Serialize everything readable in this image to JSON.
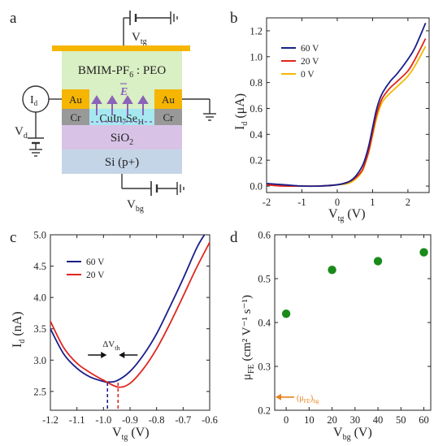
{
  "panels": {
    "a": "a",
    "b": "b",
    "c": "c",
    "d": "d"
  },
  "schematic": {
    "electrolyte": "BMIM-PF",
    "electrolyte_sub": "6",
    "electrolyte_suffix": " : PEO",
    "field": "E",
    "channel_pre": "CuIn",
    "channel_sub1": "7",
    "channel_mid": "Se",
    "channel_sub2": "11",
    "oxide_pre": "SiO",
    "oxide_sub": "2",
    "substrate": "Si (p+)",
    "au_left": "Au",
    "au_right": "Au",
    "cr_left": "Cr",
    "cr_right": "Cr",
    "meter": "I",
    "meter_sub": "d",
    "vd": "V",
    "vd_sub": "d",
    "vtg": "V",
    "vtg_sub": "tg",
    "vbg": "V",
    "vbg_sub": "bg"
  },
  "colors": {
    "v60": "#1a1f8a",
    "v20": "#e0261e",
    "v0": "#f5b800",
    "mu": "#1a8a1a",
    "ref": "#e8801e",
    "electrolyte": "#d9efc4",
    "channel": "#a6e8f0",
    "oxide": "#d8c2e6",
    "substrate": "#c5d5e8",
    "gold": "#f6b500",
    "cr": "#999999",
    "arrow": "#8b63b8"
  },
  "chart_data": [
    {
      "panel": "b",
      "type": "line",
      "xlabel": "V",
      "xlabel_sub": "tg",
      "xlabel_unit": " (V)",
      "ylabel": "I",
      "ylabel_sub": "d",
      "ylabel_unit": " (μA)",
      "xlim": [
        -2,
        2.6
      ],
      "ylim": [
        -0.05,
        1.3
      ],
      "xticks": [
        -2,
        -1,
        0,
        1,
        2
      ],
      "yticks": [
        0.0,
        0.2,
        0.4,
        0.6,
        0.8,
        1.0,
        1.2
      ],
      "ytick_labels": [
        "0.0",
        "0.2",
        "0.4",
        "0.6",
        "0.8",
        "1.0",
        "1.2"
      ],
      "legend": "top-left",
      "series": [
        {
          "name": "60 V",
          "x": [
            -2,
            -1.5,
            -1,
            -0.5,
            0,
            0.3,
            0.5,
            0.7,
            0.8,
            0.9,
            1.0,
            1.1,
            1.2,
            1.3,
            1.5,
            1.7,
            2.0,
            2.2,
            2.5
          ],
          "y": [
            0.02,
            0.01,
            0.0,
            0.0,
            0.01,
            0.03,
            0.07,
            0.15,
            0.22,
            0.32,
            0.45,
            0.58,
            0.67,
            0.73,
            0.81,
            0.87,
            0.98,
            1.07,
            1.26
          ]
        },
        {
          "name": "20 V",
          "x": [
            -2,
            -1.5,
            -1,
            -0.5,
            0,
            0.3,
            0.5,
            0.7,
            0.8,
            0.9,
            1.0,
            1.1,
            1.2,
            1.3,
            1.5,
            1.7,
            2.0,
            2.2,
            2.5
          ],
          "y": [
            0.01,
            0.0,
            0.0,
            0.0,
            0.01,
            0.03,
            0.06,
            0.12,
            0.19,
            0.28,
            0.41,
            0.54,
            0.63,
            0.69,
            0.76,
            0.81,
            0.89,
            0.98,
            1.14
          ]
        },
        {
          "name": "0 V",
          "x": [
            -2,
            -1.5,
            -1,
            -0.5,
            0,
            0.3,
            0.5,
            0.7,
            0.8,
            0.9,
            1.0,
            1.1,
            1.2,
            1.3,
            1.5,
            1.7,
            2.0,
            2.2,
            2.5
          ],
          "y": [
            0.01,
            0.0,
            0.0,
            0.0,
            0.01,
            0.02,
            0.05,
            0.11,
            0.18,
            0.27,
            0.39,
            0.51,
            0.6,
            0.66,
            0.72,
            0.77,
            0.85,
            0.93,
            1.08
          ]
        }
      ]
    },
    {
      "panel": "c",
      "type": "line",
      "xlabel": "V",
      "xlabel_sub": "tg",
      "xlabel_unit": " (V)",
      "ylabel": "I",
      "ylabel_sub": "d",
      "ylabel_unit": " (nA)",
      "xlim": [
        -1.2,
        -0.6
      ],
      "ylim": [
        2.2,
        5.0
      ],
      "xticks": [
        -1.2,
        -1.1,
        -1.0,
        -0.9,
        -0.8,
        -0.7,
        -0.6
      ],
      "xtick_labels": [
        "-1.2",
        "-1.1",
        "-1.0",
        "-0.9",
        "-0.8",
        "-0.7",
        "-0.6"
      ],
      "yticks": [
        2.5,
        3.0,
        3.5,
        4.0,
        4.5,
        5.0
      ],
      "ytick_labels": [
        "2.5",
        "3.0",
        "3.5",
        "4.0",
        "4.5",
        "5.0"
      ],
      "legend": "upper-left",
      "annotation": "ΔV",
      "annotation_sub": "th",
      "vlines": [
        {
          "x": -0.985,
          "series": "60 V"
        },
        {
          "x": -0.945,
          "series": "20 V"
        }
      ],
      "series": [
        {
          "name": "60 V",
          "x": [
            -1.2,
            -1.15,
            -1.1,
            -1.05,
            -1.0,
            -0.985,
            -0.95,
            -0.9,
            -0.85,
            -0.8,
            -0.75,
            -0.7,
            -0.65,
            -0.62
          ],
          "y": [
            3.5,
            3.1,
            2.87,
            2.73,
            2.66,
            2.65,
            2.67,
            2.82,
            3.08,
            3.42,
            3.85,
            4.3,
            4.78,
            5.0
          ]
        },
        {
          "name": "20 V",
          "x": [
            -1.2,
            -1.15,
            -1.1,
            -1.05,
            -1.0,
            -0.945,
            -0.9,
            -0.85,
            -0.8,
            -0.75,
            -0.7,
            -0.65,
            -0.6
          ],
          "y": [
            3.62,
            3.2,
            2.95,
            2.8,
            2.68,
            2.57,
            2.63,
            2.86,
            3.18,
            3.58,
            4.02,
            4.47,
            4.88
          ]
        }
      ]
    },
    {
      "panel": "d",
      "type": "scatter",
      "xlabel": "V",
      "xlabel_sub": "bg",
      "xlabel_unit": " (V)",
      "ylabel": "μ",
      "ylabel_sub": "FE",
      "ylabel_unit": " (cm² V⁻¹ s⁻¹)",
      "xlim": [
        -5,
        63
      ],
      "ylim": [
        0.2,
        0.6
      ],
      "xticks": [
        0,
        10,
        20,
        30,
        40,
        50,
        60
      ],
      "yticks": [
        0.2,
        0.3,
        0.4,
        0.5,
        0.6
      ],
      "ytick_labels": [
        "0.2",
        "0.3",
        "0.4",
        "0.5",
        "0.6"
      ],
      "ref_value": 0.23,
      "ref_label": "(μ",
      "ref_label_sub1": "FE",
      "ref_label_mid": ")",
      "ref_label_sub2": "bg",
      "series": [
        {
          "name": "",
          "x": [
            0,
            20,
            40,
            60
          ],
          "y": [
            0.42,
            0.52,
            0.54,
            0.56
          ]
        }
      ]
    }
  ]
}
